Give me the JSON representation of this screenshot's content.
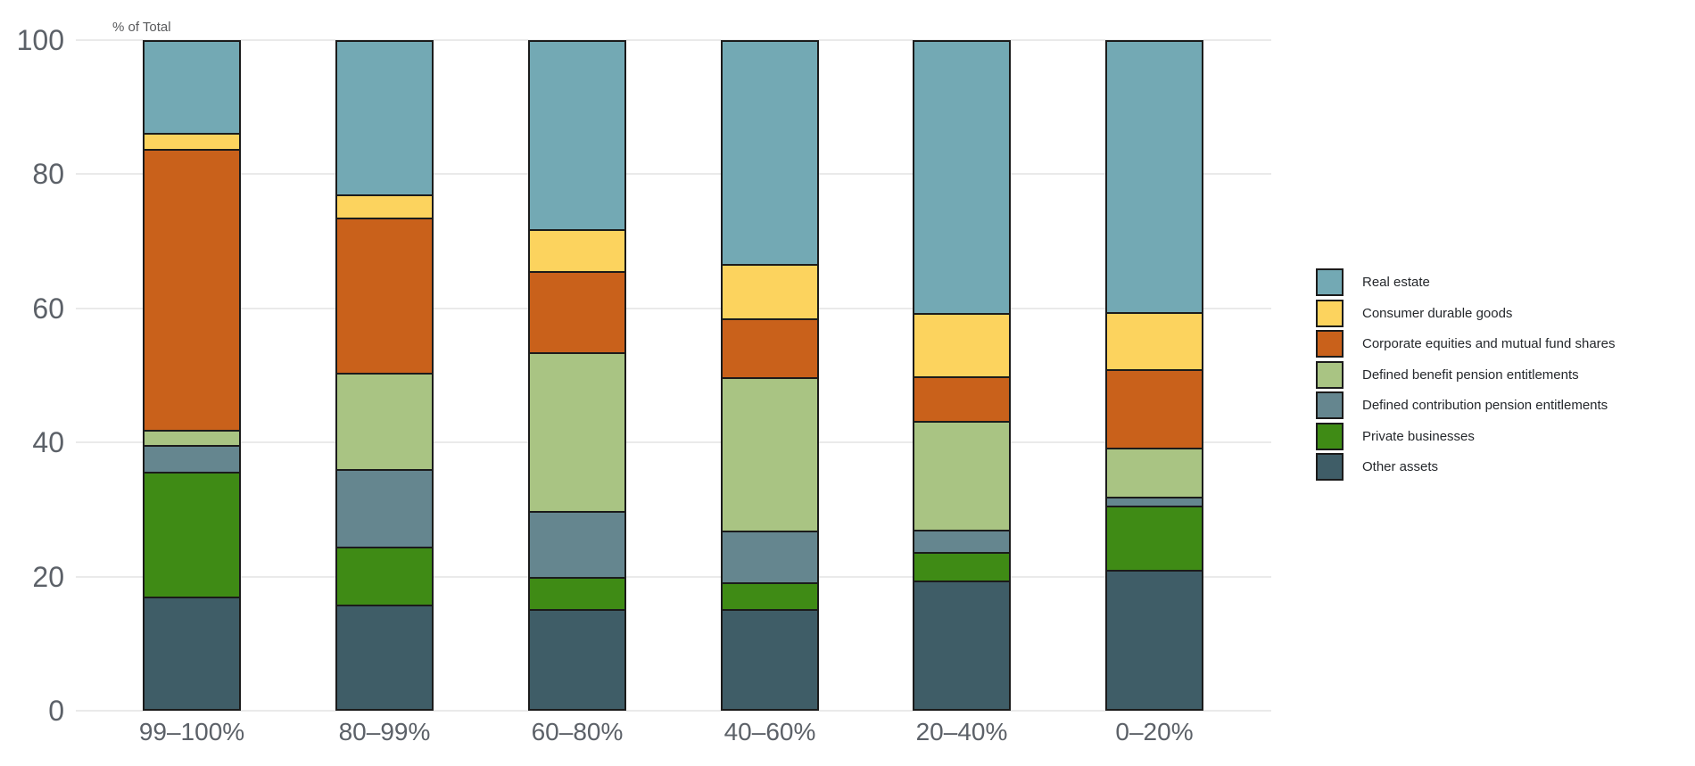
{
  "chart_data": {
    "type": "bar",
    "stacked": true,
    "title": "% of Total",
    "xlabel": "",
    "ylabel": "% of Total",
    "ylim": [
      0,
      100
    ],
    "yticks": [
      0,
      20,
      40,
      60,
      80,
      100
    ],
    "grid": true,
    "legend_position": "right",
    "categories": [
      "99–100%",
      "80–99%",
      "60–80%",
      "40–60%",
      "20–40%",
      "0–20%"
    ],
    "series": [
      {
        "name": "Real estate",
        "color": "#73A9B4",
        "values": [
          13.8,
          23.0,
          28.2,
          33.4,
          40.7,
          40.6
        ]
      },
      {
        "name": "Consumer durable goods",
        "color": "#FCD35E",
        "values": [
          2.4,
          3.5,
          6.2,
          8.1,
          9.4,
          8.5
        ]
      },
      {
        "name": "Corporate equities and mutual fund shares",
        "color": "#C9611B",
        "values": [
          41.9,
          23.1,
          12.1,
          8.8,
          6.7,
          11.7
        ]
      },
      {
        "name": "Defined benefit pension entitlements",
        "color": "#A9C483",
        "values": [
          2.3,
          14.4,
          23.7,
          22.8,
          16.2,
          7.3
        ]
      },
      {
        "name": "Defined contribution pension entitlements",
        "color": "#65868F",
        "values": [
          4.0,
          11.5,
          9.8,
          7.8,
          3.3,
          1.3
        ]
      },
      {
        "name": "Private businesses",
        "color": "#3F8B15",
        "values": [
          18.6,
          8.7,
          4.8,
          3.9,
          4.3,
          9.6
        ]
      },
      {
        "name": "Other assets",
        "color": "#3F5D67",
        "values": [
          17.0,
          15.8,
          15.2,
          15.2,
          19.4,
          21.0
        ]
      }
    ],
    "stack_order_bottom_to_top": [
      "Other assets",
      "Private businesses",
      "Defined contribution pension entitlements",
      "Defined benefit pension entitlements",
      "Corporate equities and mutual fund shares",
      "Consumer durable goods",
      "Real estate"
    ]
  }
}
